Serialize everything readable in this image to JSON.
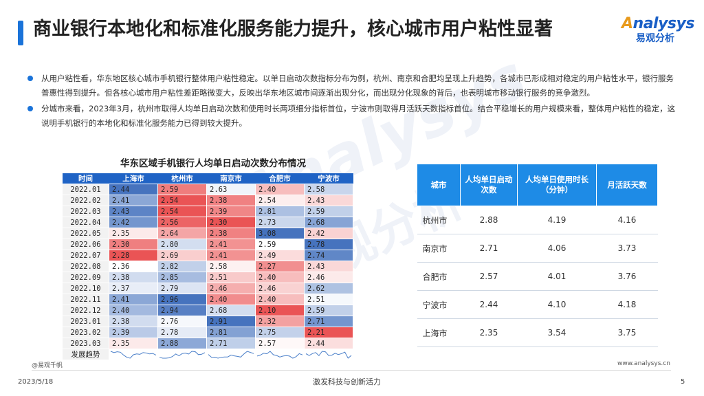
{
  "title": "商业银行本地化和标准化服务能力提升，核心城市用户粘性显著",
  "logo": {
    "en_a": "A",
    "en_rest": "nalysys",
    "cn": "易观分析"
  },
  "watermark": {
    "en": "Analysys",
    "cn": "易观分析"
  },
  "bullets": [
    "从用户粘性看，华东地区核心城市手机银行整体用户粘性稳定。以单日启动次数指标分布为例，杭州、南京和合肥均呈现上升趋势，各城市已形成相对稳定的用户粘性水平，银行服务普惠性得到提升。但各核心城市用户粘性差距略微变大，反映出华东地区城市间逐渐出现分化，而出现分化现象的背后，也表明城市移动银行服务的竞争激烈。",
    "分城市来看，2023年3月，杭州市取得人均单日启动次数和使用时长两项细分指标首位，宁波市则取得月活跃天数指标首位。结合平稳增长的用户规模来看，整体用户粘性的稳定，这说明手机银行的本地化和标准化服务能力已得到较大提升。"
  ],
  "heatmap": {
    "title": "华东区域手机银行人均单日启动次数分布情况",
    "headers": [
      "时间",
      "上海市",
      "杭州市",
      "南京市",
      "合肥市",
      "宁波市"
    ],
    "trend_label": "发展趋势",
    "rows": [
      {
        "time": "2022.01",
        "v": [
          "2.44",
          "2.59",
          "2.63",
          "2.40",
          "2.58"
        ]
      },
      {
        "time": "2022.02",
        "v": [
          "2.41",
          "2.54",
          "2.38",
          "2.54",
          "2.43"
        ]
      },
      {
        "time": "2022.03",
        "v": [
          "2.43",
          "2.54",
          "2.39",
          "2.81",
          "2.59"
        ]
      },
      {
        "time": "2022.04",
        "v": [
          "2.42",
          "2.56",
          "2.30",
          "2.73",
          "2.68"
        ]
      },
      {
        "time": "2022.05",
        "v": [
          "2.35",
          "2.64",
          "2.38",
          "3.08",
          "2.42"
        ]
      },
      {
        "time": "2022.06",
        "v": [
          "2.30",
          "2.80",
          "2.41",
          "2.59",
          "2.78"
        ]
      },
      {
        "time": "2022.07",
        "v": [
          "2.28",
          "2.69",
          "2.41",
          "2.49",
          "2.74"
        ]
      },
      {
        "time": "2022.08",
        "v": [
          "2.36",
          "2.82",
          "2.58",
          "2.27",
          "2.43"
        ]
      },
      {
        "time": "2022.09",
        "v": [
          "2.38",
          "2.85",
          "2.51",
          "2.40",
          "2.46"
        ]
      },
      {
        "time": "2022.10",
        "v": [
          "2.37",
          "2.79",
          "2.46",
          "2.46",
          "2.62"
        ]
      },
      {
        "time": "2022.11",
        "v": [
          "2.41",
          "2.96",
          "2.40",
          "2.40",
          "2.51"
        ]
      },
      {
        "time": "2022.12",
        "v": [
          "2.40",
          "2.94",
          "2.68",
          "2.10",
          "2.59"
        ]
      },
      {
        "time": "2023.01",
        "v": [
          "2.38",
          "2.76",
          "2.91",
          "2.32",
          "2.71"
        ]
      },
      {
        "time": "2023.02",
        "v": [
          "2.39",
          "2.78",
          "2.81",
          "2.75",
          "2.21"
        ]
      },
      {
        "time": "2023.03",
        "v": [
          "2.35",
          "2.88",
          "2.71",
          "2.57",
          "2.44"
        ]
      }
    ]
  },
  "city_table": {
    "headers": [
      "城市",
      "人均单日启动次数",
      "人均单日使用时长（分钟）",
      "月活跃天数"
    ],
    "rows": [
      [
        "杭州市",
        "2.88",
        "4.19",
        "4.16"
      ],
      [
        "南京市",
        "2.71",
        "4.06",
        "3.73"
      ],
      [
        "合肥市",
        "2.57",
        "4.01",
        "3.76"
      ],
      [
        "宁波市",
        "2.44",
        "4.10",
        "4.18"
      ],
      [
        "上海市",
        "2.35",
        "3.54",
        "3.75"
      ]
    ]
  },
  "footer": {
    "source": "@易观千帆",
    "website": "www.analysys.cn",
    "date": "2023/5/18",
    "slogan": "激发科技与创新活力",
    "page": "5"
  },
  "colors": {
    "accent": "#1a73d9",
    "header_blue": "#1f63c5",
    "table_header": "#1e8be6",
    "high": "#3d6fb8",
    "low": "#ea5455"
  }
}
